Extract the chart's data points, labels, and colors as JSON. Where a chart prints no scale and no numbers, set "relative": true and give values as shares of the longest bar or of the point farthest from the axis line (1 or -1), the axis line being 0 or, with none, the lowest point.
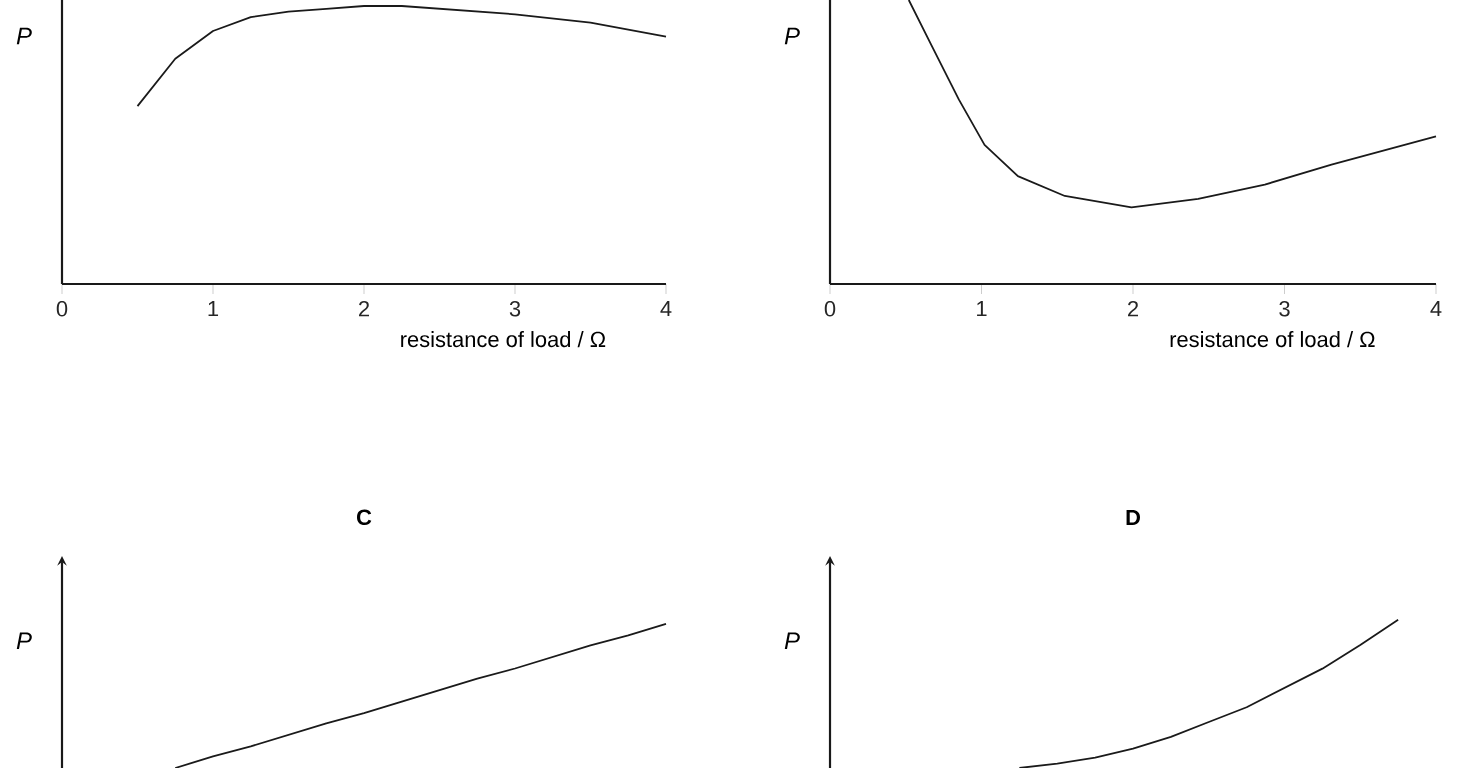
{
  "chart_data": [
    {
      "type": "line",
      "relative": true,
      "xlabel": "resistance of load / Ω",
      "ylabel": "P",
      "xlim": [
        0,
        4
      ],
      "xticks": [
        0,
        1,
        2,
        3,
        4
      ],
      "series": [
        {
          "color": "#1a1a1a",
          "x": [
            0.5,
            0.75,
            1,
            1.25,
            1.5,
            1.75,
            2,
            2.25,
            2.5,
            3,
            3.5,
            4
          ],
          "values": [
            0.64,
            0.81,
            0.91,
            0.96,
            0.98,
            0.99,
            1,
            1,
            0.99,
            0.97,
            0.94,
            0.89
          ]
        }
      ]
    },
    {
      "type": "line",
      "relative": true,
      "xlabel": "resistance of load / Ω",
      "ylabel": "P",
      "xlim": [
        0,
        4
      ],
      "xticks": [
        0,
        1,
        2,
        3,
        4
      ],
      "series": [
        {
          "color": "#1a1a1a",
          "x": [
            0.52,
            0.67,
            0.85,
            1.02,
            1.24,
            1.55,
            1.99,
            2.43,
            2.87,
            3.31,
            4
          ],
          "values": [
            1,
            0.84,
            0.65,
            0.49,
            0.38,
            0.31,
            0.27,
            0.3,
            0.35,
            0.42,
            0.52
          ]
        }
      ]
    },
    {
      "type": "line",
      "relative": true,
      "title": "C",
      "ylabel": "P",
      "categories": [
        null,
        null,
        null,
        null,
        null,
        null,
        null,
        null,
        null,
        null,
        null,
        null,
        null,
        null,
        null,
        null,
        null
      ],
      "series": [
        {
          "color": "#1a1a1a",
          "values": [
            null,
            null,
            null,
            0,
            0.08,
            0.15,
            0.23,
            0.31,
            0.38,
            0.46,
            0.54,
            0.62,
            0.69,
            0.77,
            0.85,
            0.92,
            1
          ]
        }
      ]
    },
    {
      "type": "line",
      "relative": true,
      "title": "D",
      "ylabel": "P",
      "categories": [
        null,
        null,
        null,
        null,
        null,
        null,
        null,
        null,
        null,
        null,
        null,
        null,
        null,
        null,
        null,
        null,
        null
      ],
      "series": [
        {
          "color": "#1a1a1a",
          "values": [
            null,
            null,
            null,
            null,
            null,
            0,
            0.03,
            0.07,
            0.13,
            0.21,
            0.31,
            0.41,
            0.54,
            0.67,
            0.83,
            1,
            null
          ]
        }
      ]
    }
  ]
}
